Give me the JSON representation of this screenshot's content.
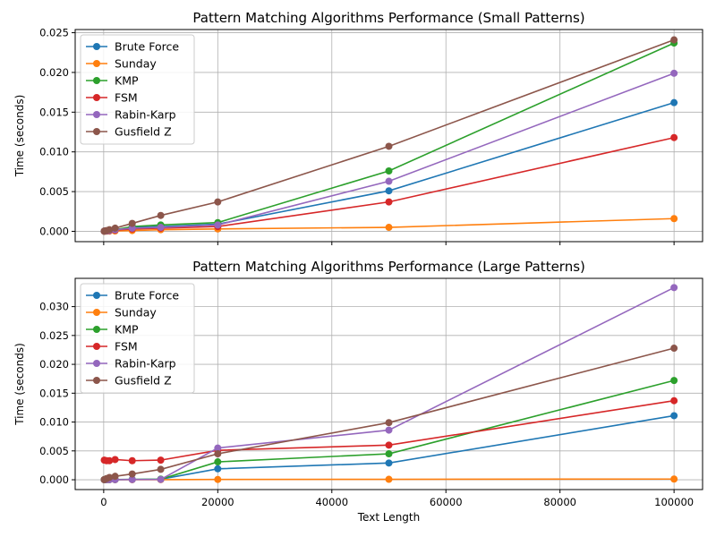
{
  "chart_data": [
    {
      "type": "line",
      "title": "Pattern Matching Algorithms Performance (Small Patterns)",
      "xlabel": "",
      "ylabel": "Time (seconds)",
      "xlim": [
        -5000,
        105000
      ],
      "ylim": [
        -0.0013,
        0.0254
      ],
      "x_ticks": [
        0,
        20000,
        40000,
        60000,
        80000,
        100000
      ],
      "x_tick_labels": [
        "",
        "",
        "",
        "",
        "",
        ""
      ],
      "y_ticks": [
        0,
        0.005,
        0.01,
        0.015,
        0.02,
        0.025
      ],
      "y_tick_labels": [
        "0.000",
        "0.005",
        "0.010",
        "0.015",
        "0.020",
        "0.025"
      ],
      "grid": true,
      "legend_position": "top-left",
      "x": [
        100,
        500,
        1000,
        2000,
        5000,
        10000,
        20000,
        50000,
        100000
      ],
      "series": [
        {
          "name": "Brute Force",
          "color": "#1f77b4",
          "values": [
            2e-05,
            5e-05,
            0.0001,
            0.0002,
            0.0005,
            0.0006,
            0.0009,
            0.0051,
            0.0162
          ]
        },
        {
          "name": "Sunday",
          "color": "#ff7f0e",
          "values": [
            1e-05,
            2e-05,
            3e-05,
            5e-05,
            0.0001,
            0.0002,
            0.0003,
            0.0005,
            0.0016
          ]
        },
        {
          "name": "KMP",
          "color": "#2ca02c",
          "values": [
            2e-05,
            6e-05,
            0.0001,
            0.0002,
            0.0006,
            0.0008,
            0.0011,
            0.0076,
            0.0237
          ]
        },
        {
          "name": "FSM",
          "color": "#d62728",
          "values": [
            2e-05,
            4e-05,
            8e-05,
            0.00015,
            0.0003,
            0.0004,
            0.0006,
            0.0037,
            0.0118
          ]
        },
        {
          "name": "Rabin-Karp",
          "color": "#9467bd",
          "values": [
            2e-05,
            5e-05,
            0.0001,
            0.0002,
            0.0004,
            0.0005,
            0.0008,
            0.0063,
            0.0199
          ]
        },
        {
          "name": "Gusfield Z",
          "color": "#8c564b",
          "values": [
            3e-05,
            0.0001,
            0.0002,
            0.0004,
            0.001,
            0.002,
            0.0037,
            0.0107,
            0.0241
          ]
        }
      ]
    },
    {
      "type": "line",
      "title": "Pattern Matching Algorithms Performance (Large Patterns)",
      "xlabel": "Text Length",
      "ylabel": "Time (seconds)",
      "xlim": [
        -5000,
        105000
      ],
      "ylim": [
        -0.0017,
        0.0349
      ],
      "x_ticks": [
        0,
        20000,
        40000,
        60000,
        80000,
        100000
      ],
      "x_tick_labels": [
        "0",
        "20000",
        "40000",
        "60000",
        "80000",
        "100000"
      ],
      "y_ticks": [
        0,
        0.005,
        0.01,
        0.015,
        0.02,
        0.025,
        0.03
      ],
      "y_tick_labels": [
        "0.000",
        "0.005",
        "0.010",
        "0.015",
        "0.020",
        "0.025",
        "0.030"
      ],
      "grid": true,
      "legend_position": "top-left",
      "x": [
        100,
        500,
        1000,
        2000,
        5000,
        10000,
        20000,
        50000,
        100000
      ],
      "series": [
        {
          "name": "Brute Force",
          "color": "#1f77b4",
          "values": [
            1e-05,
            1e-05,
            2e-05,
            3e-05,
            5e-05,
            0.0001,
            0.0019,
            0.0029,
            0.0111
          ]
        },
        {
          "name": "Sunday",
          "color": "#ff7f0e",
          "values": [
            1e-05,
            1e-05,
            1e-05,
            1e-05,
            1e-05,
            2e-05,
            5e-05,
            8e-05,
            0.00012
          ]
        },
        {
          "name": "KMP",
          "color": "#2ca02c",
          "values": [
            2e-05,
            2e-05,
            3e-05,
            4e-05,
            6e-05,
            0.0001,
            0.0031,
            0.0045,
            0.0172
          ]
        },
        {
          "name": "FSM",
          "color": "#d62728",
          "values": [
            0.0034,
            0.0033,
            0.0033,
            0.0035,
            0.0033,
            0.0034,
            0.0051,
            0.006,
            0.0137
          ]
        },
        {
          "name": "Rabin-Karp",
          "color": "#9467bd",
          "values": [
            1e-05,
            1e-05,
            2e-05,
            2e-05,
            3e-05,
            5e-05,
            0.0055,
            0.0086,
            0.0333
          ]
        },
        {
          "name": "Gusfield Z",
          "color": "#8c564b",
          "values": [
            2e-05,
            0.0002,
            0.0004,
            0.0006,
            0.001,
            0.0018,
            0.0045,
            0.0099,
            0.0228
          ]
        }
      ]
    }
  ]
}
